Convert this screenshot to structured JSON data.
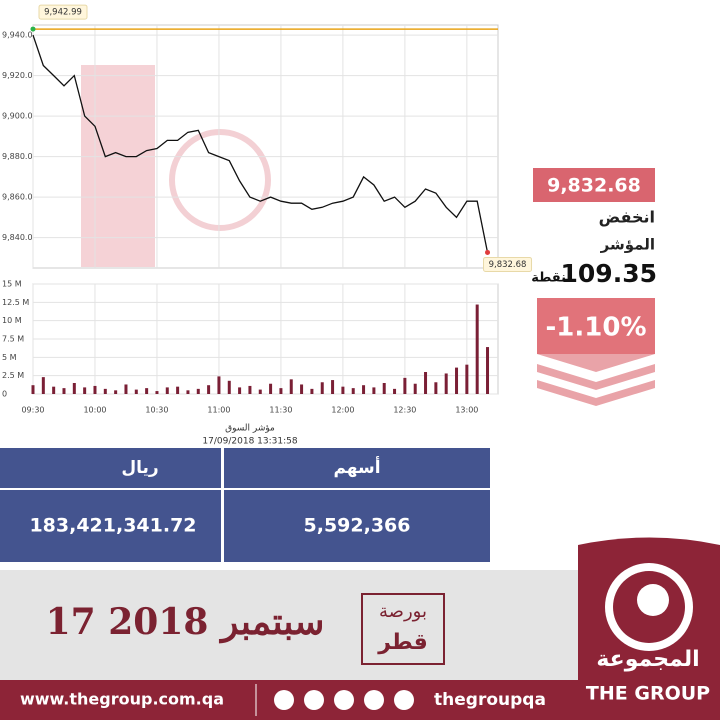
{
  "chart_data": [
    {
      "type": "line",
      "x": [
        "09:30",
        null,
        null,
        null,
        null,
        null,
        "10:00",
        null,
        null,
        null,
        null,
        null,
        "10:30",
        null,
        null,
        null,
        null,
        null,
        "11:00",
        null,
        null,
        null,
        null,
        null,
        "11:30",
        null,
        null,
        null,
        null,
        null,
        "12:00",
        null,
        null,
        null,
        null,
        null,
        "12:30",
        null,
        null,
        null,
        null,
        null,
        "13:00",
        null,
        null
      ],
      "series": [
        {
          "name": "مؤشر السوق",
          "color": "#111111",
          "values": [
            9940,
            9925,
            9920,
            9915,
            9920,
            9900,
            9895,
            9880,
            9882,
            9880,
            9880,
            9883,
            9884,
            9888,
            9888,
            9892,
            9893,
            9882,
            9880,
            9878,
            9868,
            9860,
            9858,
            9860,
            9858,
            9857,
            9857,
            9854,
            9855,
            9857,
            9858,
            9860,
            9870,
            9866,
            9858,
            9860,
            9855,
            9858,
            9864,
            9862,
            9855,
            9850,
            9858,
            9858,
            9832.68
          ]
        }
      ],
      "ylim": [
        9825,
        9945
      ],
      "yticks": [
        {
          "value": 9840,
          "label": "9,840.0"
        },
        {
          "value": 9860,
          "label": "9,860.0"
        },
        {
          "value": 9880,
          "label": "9,880.0"
        },
        {
          "value": 9900,
          "label": "9,900.0"
        },
        {
          "value": 9920,
          "label": "9,920.0"
        },
        {
          "value": 9940,
          "label": "9,940.0"
        }
      ],
      "grid": true,
      "annotations": [
        {
          "value": 9942.99,
          "label": "9,942.99",
          "color": "#e8a317"
        },
        {
          "value": 9832.68,
          "label": "9,832.68",
          "color": "#e03c3c"
        }
      ],
      "xlabel": "مؤشر السوق",
      "subtitle": "17/09/2018 13:31:58"
    },
    {
      "type": "bar",
      "x": [
        "09:30",
        null,
        null,
        null,
        null,
        null,
        "10:00",
        null,
        null,
        null,
        null,
        null,
        "10:30",
        null,
        null,
        null,
        null,
        null,
        "11:00",
        null,
        null,
        null,
        null,
        null,
        "11:30",
        null,
        null,
        null,
        null,
        null,
        "12:00",
        null,
        null,
        null,
        null,
        null,
        "12:30",
        null,
        null,
        null,
        null,
        null,
        "13:00",
        null,
        null
      ],
      "color": "#7a1f35",
      "values": [
        1.2,
        2.3,
        1.0,
        0.8,
        1.5,
        0.9,
        1.1,
        0.7,
        0.5,
        1.3,
        0.6,
        0.8,
        0.4,
        0.9,
        1.0,
        0.5,
        0.7,
        1.2,
        2.4,
        1.8,
        0.9,
        1.1,
        0.6,
        1.4,
        0.8,
        2.0,
        1.3,
        0.7,
        1.6,
        1.9,
        1.0,
        0.8,
        1.2,
        0.9,
        1.5,
        0.7,
        2.2,
        1.4,
        3.0,
        1.6,
        2.8,
        3.6,
        4.0,
        12.2,
        6.4
      ],
      "ylim": [
        0,
        15
      ],
      "yticks": [
        0,
        {
          "value": 2.5,
          "label": "2.5 M"
        },
        {
          "value": 5,
          "label": "5 M"
        },
        {
          "value": 7.5,
          "label": "7.5 M"
        },
        {
          "value": 10,
          "label": "10 M"
        },
        {
          "value": 12.5,
          "label": "12.5 M"
        },
        {
          "value": 15,
          "label": "15 M"
        }
      ],
      "grid": true
    }
  ],
  "summary": {
    "close": "9,832.68",
    "direction": "انخفض",
    "index": "المؤشر",
    "change": "109.35",
    "unit": "نقطة",
    "percent": "-1.10%"
  },
  "table": {
    "headers": [
      "ريال",
      "أسهم"
    ],
    "rows": [
      [
        "183,421,341.72",
        "5,592,366"
      ]
    ]
  },
  "footer": {
    "date": "17 سبتمبر 2018",
    "exchange_top": "بورصة",
    "exchange_bottom": "قطر",
    "brand_ar": "المجموعة",
    "brand_en": "THE GROUP",
    "website": "www.thegroup.com.qa",
    "handle": "thegroupqa"
  }
}
